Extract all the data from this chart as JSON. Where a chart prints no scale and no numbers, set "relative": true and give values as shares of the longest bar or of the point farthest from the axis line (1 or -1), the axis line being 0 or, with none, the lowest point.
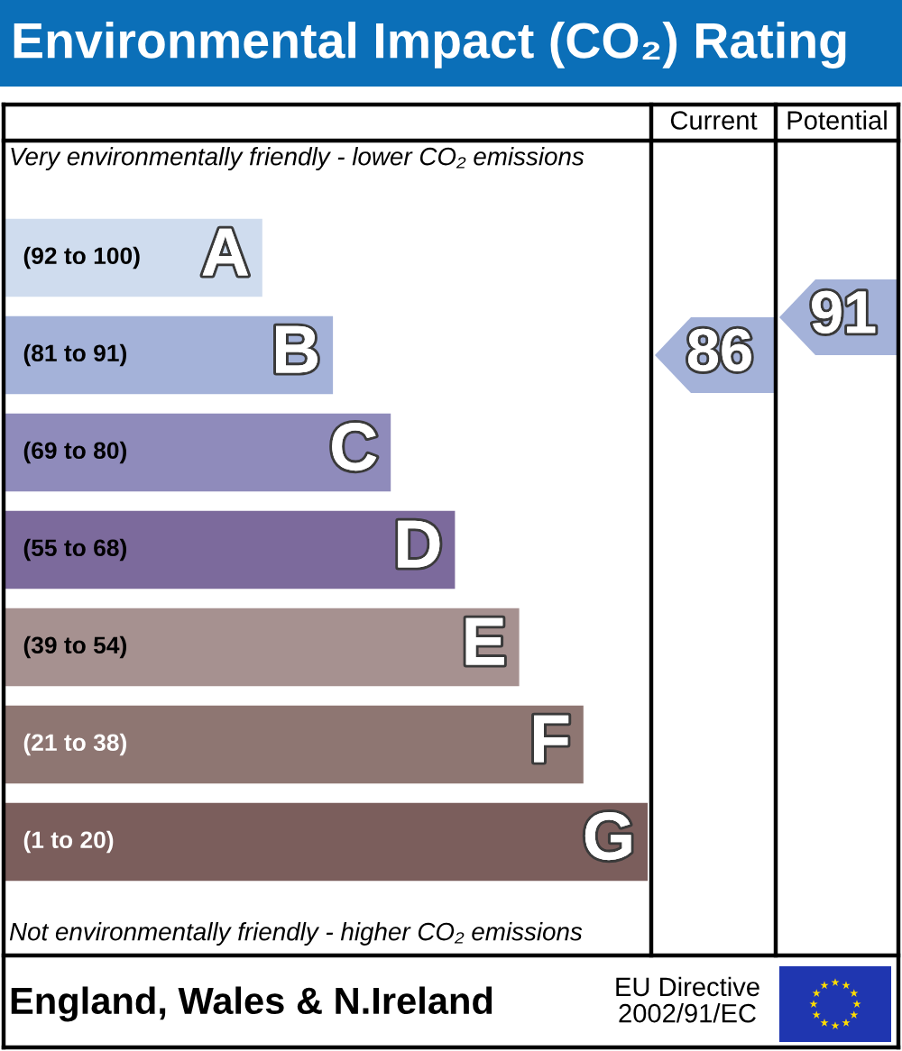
{
  "chart_data": {
    "type": "bar",
    "orientation": "horizontal",
    "relative": true,
    "title": "Environmental Impact (CO₂) Rating",
    "categories": [
      "A",
      "B",
      "C",
      "D",
      "E",
      "F",
      "G"
    ],
    "values": [
      0.4,
      0.51,
      0.6,
      0.7,
      0.8,
      0.9,
      1.0
    ],
    "colors": [
      "#cfdcee",
      "#a4b2d9",
      "#8f8bbb",
      "#7c6a9c",
      "#a69190",
      "#8e7672",
      "#7b5e5c"
    ],
    "annotations": [
      "(92 to 100)",
      "(81 to 91)",
      "(69 to 80)",
      "(55 to 68)",
      "(39 to 54)",
      "(21 to 38)",
      "(1 to 20)",
      "86",
      "91",
      "Current",
      "Potential",
      "Very environmentally friendly - lower CO₂ emissions",
      "Not environmentally friendly - higher CO₂ emissions",
      "England, Wales & N.Ireland",
      "EU Directive\n2002/91/EC"
    ]
  }
}
